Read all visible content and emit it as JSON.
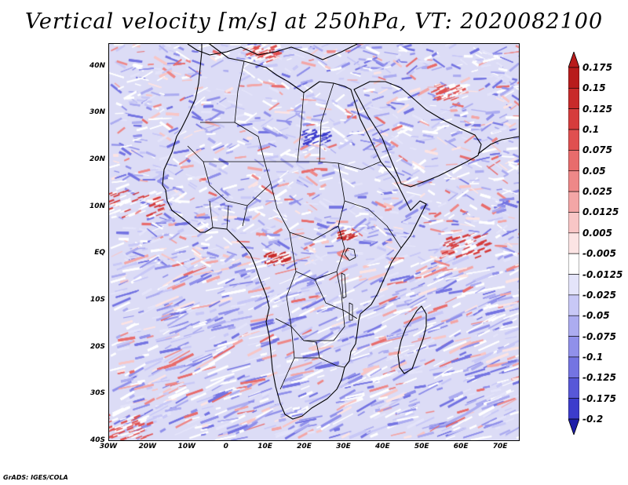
{
  "title": "Vertical velocity [m/s] at 250hPa, VT: 2020082100",
  "footer": "GrADS: IGES/COLA",
  "map": {
    "lon_range": [
      -30,
      75
    ],
    "lat_range": [
      -40,
      45
    ],
    "lat_ticks": [
      {
        "value": 40,
        "label": "40N"
      },
      {
        "value": 30,
        "label": "30N"
      },
      {
        "value": 20,
        "label": "20N"
      },
      {
        "value": 10,
        "label": "10N"
      },
      {
        "value": 0,
        "label": "EQ"
      },
      {
        "value": -10,
        "label": "10S"
      },
      {
        "value": -20,
        "label": "20S"
      },
      {
        "value": -30,
        "label": "30S"
      },
      {
        "value": -40,
        "label": "40S"
      }
    ],
    "lon_ticks": [
      {
        "value": -30,
        "label": "30W"
      },
      {
        "value": -20,
        "label": "20W"
      },
      {
        "value": -10,
        "label": "10W"
      },
      {
        "value": 0,
        "label": "0"
      },
      {
        "value": 10,
        "label": "10E"
      },
      {
        "value": 20,
        "label": "20E"
      },
      {
        "value": 30,
        "label": "30E"
      },
      {
        "value": 40,
        "label": "40E"
      },
      {
        "value": 50,
        "label": "50E"
      },
      {
        "value": 60,
        "label": "60E"
      },
      {
        "value": 70,
        "label": "70E"
      }
    ]
  },
  "colorbar": {
    "levels": [
      {
        "label": "0.175",
        "color": "#b81c1c"
      },
      {
        "label": "0.15",
        "color": "#c82a2a"
      },
      {
        "label": "0.125",
        "color": "#d63c3c"
      },
      {
        "label": "0.1",
        "color": "#e05050"
      },
      {
        "label": "0.075",
        "color": "#e86c6c"
      },
      {
        "label": "0.05",
        "color": "#ee8888"
      },
      {
        "label": "0.025",
        "color": "#f3a6a6"
      },
      {
        "label": "0.0125",
        "color": "#f8c6c6"
      },
      {
        "label": "0.005",
        "color": "#fce4e4"
      },
      {
        "label": "-0.005",
        "color": "#ffffff"
      },
      {
        "label": "-0.0125",
        "color": "#e4e4fa"
      },
      {
        "label": "-0.025",
        "color": "#c8c8f6"
      },
      {
        "label": "-0.05",
        "color": "#acacf0"
      },
      {
        "label": "-0.075",
        "color": "#9090ea"
      },
      {
        "label": "-0.1",
        "color": "#7474e2"
      },
      {
        "label": "-0.125",
        "color": "#5858d8"
      },
      {
        "label": "-0.175",
        "color": "#3c3ccc"
      },
      {
        "label": "-0.2",
        "color": "#2626b8"
      }
    ],
    "min_color": "#1e1ea8"
  }
}
